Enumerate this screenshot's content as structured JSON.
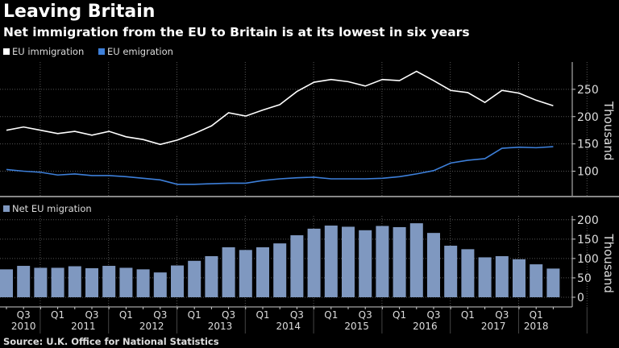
{
  "title": "Leaving Britain",
  "subtitle": "Net immigration from the EU to Britain is at its lowest in six years",
  "source": "Source: U.K. Office for National Statistics",
  "chart_data": [
    {
      "type": "line",
      "ylabel": "Thousand",
      "ylim": [
        55,
        300
      ],
      "yticks": [
        100,
        150,
        200,
        250
      ],
      "grid": true,
      "legend": "top-left",
      "x": [
        "2010 Q2",
        "2010 Q3",
        "2010 Q4",
        "2011 Q1",
        "2011 Q2",
        "2011 Q3",
        "2011 Q4",
        "2012 Q1",
        "2012 Q2",
        "2012 Q3",
        "2012 Q4",
        "2013 Q1",
        "2013 Q2",
        "2013 Q3",
        "2013 Q4",
        "2014 Q1",
        "2014 Q2",
        "2014 Q3",
        "2014 Q4",
        "2015 Q1",
        "2015 Q2",
        "2015 Q3",
        "2015 Q4",
        "2016 Q1",
        "2016 Q2",
        "2016 Q3",
        "2016 Q4",
        "2017 Q1",
        "2017 Q2",
        "2017 Q3",
        "2017 Q4",
        "2018 Q1",
        "2018 Q2"
      ],
      "series": [
        {
          "name": "EU immigration",
          "color": "#ffffff",
          "values": [
            175,
            181,
            175,
            169,
            173,
            166,
            173,
            163,
            158,
            149,
            157,
            169,
            183,
            207,
            201,
            212,
            222,
            246,
            263,
            268,
            264,
            256,
            268,
            266,
            283,
            266,
            248,
            244,
            226,
            248,
            243,
            230,
            220
          ]
        },
        {
          "name": "EU emigration",
          "color": "#3d7fd9",
          "values": [
            103,
            100,
            98,
            93,
            95,
            92,
            92,
            90,
            87,
            84,
            76,
            76,
            77,
            78,
            78,
            83,
            86,
            88,
            89,
            86,
            86,
            86,
            87,
            90,
            95,
            101,
            115,
            120,
            123,
            142,
            144,
            143,
            145
          ]
        }
      ]
    },
    {
      "type": "bar",
      "ylabel": "Thousand",
      "ylim": [
        -25,
        210
      ],
      "yticks": [
        0,
        50,
        100,
        150,
        200
      ],
      "grid": true,
      "legend": "top-left",
      "series": [
        {
          "name": "Net EU migration",
          "color": "#7f98c0",
          "values": [
            72,
            81,
            76,
            76,
            80,
            75,
            81,
            76,
            72,
            64,
            82,
            94,
            106,
            129,
            122,
            129,
            139,
            160,
            177,
            185,
            182,
            173,
            184,
            181,
            191,
            166,
            133,
            124,
            103,
            106,
            98,
            85,
            74
          ]
        }
      ],
      "xtick_labels": [
        {
          "q": "Q3",
          "year": "2010"
        },
        {
          "q": "Q1",
          "year": ""
        },
        {
          "q": "Q3",
          "year": "2011"
        },
        {
          "q": "Q1",
          "year": ""
        },
        {
          "q": "Q3",
          "year": "2012"
        },
        {
          "q": "Q1",
          "year": ""
        },
        {
          "q": "Q3",
          "year": "2013"
        },
        {
          "q": "Q1",
          "year": ""
        },
        {
          "q": "Q3",
          "year": "2014"
        },
        {
          "q": "Q1",
          "year": ""
        },
        {
          "q": "Q3",
          "year": "2015"
        },
        {
          "q": "Q1",
          "year": ""
        },
        {
          "q": "Q3",
          "year": "2016"
        },
        {
          "q": "Q1",
          "year": ""
        },
        {
          "q": "Q3",
          "year": "2017"
        },
        {
          "q": "Q1",
          "year": "2018"
        }
      ]
    }
  ]
}
